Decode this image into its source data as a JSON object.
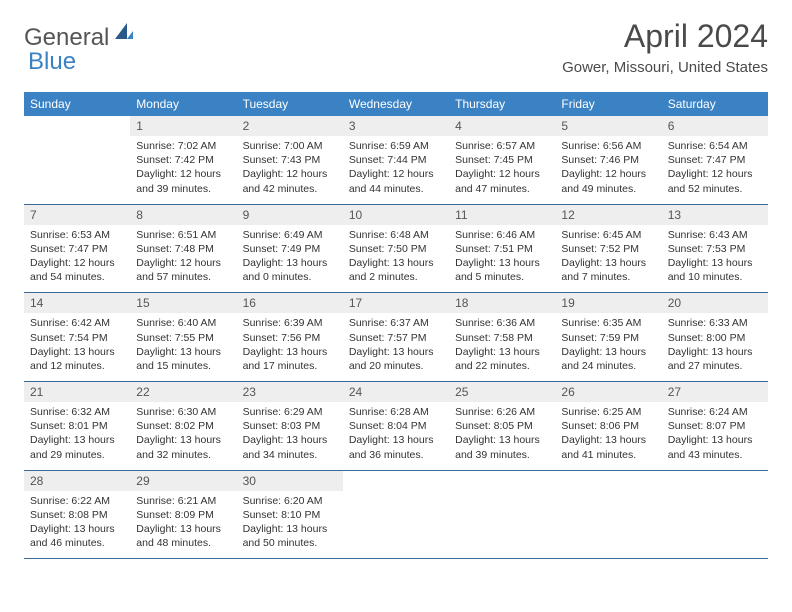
{
  "brand": {
    "part1": "General",
    "part2": "Blue"
  },
  "title": "April 2024",
  "location": "Gower, Missouri, United States",
  "header_bg": "#3a82c4",
  "dow": [
    "Sunday",
    "Monday",
    "Tuesday",
    "Wednesday",
    "Thursday",
    "Friday",
    "Saturday"
  ],
  "weeks": [
    [
      null,
      {
        "n": "1",
        "sr": "7:02 AM",
        "ss": "7:42 PM",
        "dl": "12 hours and 39 minutes."
      },
      {
        "n": "2",
        "sr": "7:00 AM",
        "ss": "7:43 PM",
        "dl": "12 hours and 42 minutes."
      },
      {
        "n": "3",
        "sr": "6:59 AM",
        "ss": "7:44 PM",
        "dl": "12 hours and 44 minutes."
      },
      {
        "n": "4",
        "sr": "6:57 AM",
        "ss": "7:45 PM",
        "dl": "12 hours and 47 minutes."
      },
      {
        "n": "5",
        "sr": "6:56 AM",
        "ss": "7:46 PM",
        "dl": "12 hours and 49 minutes."
      },
      {
        "n": "6",
        "sr": "6:54 AM",
        "ss": "7:47 PM",
        "dl": "12 hours and 52 minutes."
      }
    ],
    [
      {
        "n": "7",
        "sr": "6:53 AM",
        "ss": "7:47 PM",
        "dl": "12 hours and 54 minutes."
      },
      {
        "n": "8",
        "sr": "6:51 AM",
        "ss": "7:48 PM",
        "dl": "12 hours and 57 minutes."
      },
      {
        "n": "9",
        "sr": "6:49 AM",
        "ss": "7:49 PM",
        "dl": "13 hours and 0 minutes."
      },
      {
        "n": "10",
        "sr": "6:48 AM",
        "ss": "7:50 PM",
        "dl": "13 hours and 2 minutes."
      },
      {
        "n": "11",
        "sr": "6:46 AM",
        "ss": "7:51 PM",
        "dl": "13 hours and 5 minutes."
      },
      {
        "n": "12",
        "sr": "6:45 AM",
        "ss": "7:52 PM",
        "dl": "13 hours and 7 minutes."
      },
      {
        "n": "13",
        "sr": "6:43 AM",
        "ss": "7:53 PM",
        "dl": "13 hours and 10 minutes."
      }
    ],
    [
      {
        "n": "14",
        "sr": "6:42 AM",
        "ss": "7:54 PM",
        "dl": "13 hours and 12 minutes."
      },
      {
        "n": "15",
        "sr": "6:40 AM",
        "ss": "7:55 PM",
        "dl": "13 hours and 15 minutes."
      },
      {
        "n": "16",
        "sr": "6:39 AM",
        "ss": "7:56 PM",
        "dl": "13 hours and 17 minutes."
      },
      {
        "n": "17",
        "sr": "6:37 AM",
        "ss": "7:57 PM",
        "dl": "13 hours and 20 minutes."
      },
      {
        "n": "18",
        "sr": "6:36 AM",
        "ss": "7:58 PM",
        "dl": "13 hours and 22 minutes."
      },
      {
        "n": "19",
        "sr": "6:35 AM",
        "ss": "7:59 PM",
        "dl": "13 hours and 24 minutes."
      },
      {
        "n": "20",
        "sr": "6:33 AM",
        "ss": "8:00 PM",
        "dl": "13 hours and 27 minutes."
      }
    ],
    [
      {
        "n": "21",
        "sr": "6:32 AM",
        "ss": "8:01 PM",
        "dl": "13 hours and 29 minutes."
      },
      {
        "n": "22",
        "sr": "6:30 AM",
        "ss": "8:02 PM",
        "dl": "13 hours and 32 minutes."
      },
      {
        "n": "23",
        "sr": "6:29 AM",
        "ss": "8:03 PM",
        "dl": "13 hours and 34 minutes."
      },
      {
        "n": "24",
        "sr": "6:28 AM",
        "ss": "8:04 PM",
        "dl": "13 hours and 36 minutes."
      },
      {
        "n": "25",
        "sr": "6:26 AM",
        "ss": "8:05 PM",
        "dl": "13 hours and 39 minutes."
      },
      {
        "n": "26",
        "sr": "6:25 AM",
        "ss": "8:06 PM",
        "dl": "13 hours and 41 minutes."
      },
      {
        "n": "27",
        "sr": "6:24 AM",
        "ss": "8:07 PM",
        "dl": "13 hours and 43 minutes."
      }
    ],
    [
      {
        "n": "28",
        "sr": "6:22 AM",
        "ss": "8:08 PM",
        "dl": "13 hours and 46 minutes."
      },
      {
        "n": "29",
        "sr": "6:21 AM",
        "ss": "8:09 PM",
        "dl": "13 hours and 48 minutes."
      },
      {
        "n": "30",
        "sr": "6:20 AM",
        "ss": "8:10 PM",
        "dl": "13 hours and 50 minutes."
      },
      null,
      null,
      null,
      null
    ]
  ]
}
